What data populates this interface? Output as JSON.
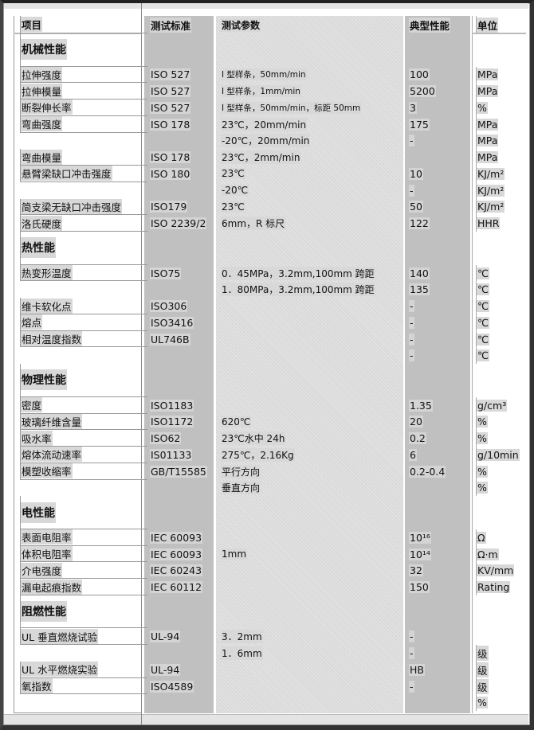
{
  "header": [
    "项目",
    "测试标准",
    "测试参数",
    "典型性能",
    "单位"
  ],
  "sections": [
    {
      "title": "机械性能",
      "rows": [
        [
          "拉伸强度",
          "ISO 527",
          "I 型样条，50mm/min",
          "100",
          "MPa"
        ],
        [
          "拉伸模量",
          "ISO 527",
          "I 型样条，1mm/min",
          "5200",
          "MPa"
        ],
        [
          "断裂伸长率",
          "ISO 527",
          "I 型样条，50mm/min，标距 50mm",
          "3",
          "%"
        ],
        [
          "弯曲强度",
          "ISO 178",
          "23℃，20mm/min",
          "175",
          "MPa"
        ],
        [
          "",
          "",
          "-20℃，20mm/min",
          "-",
          "MPa"
        ],
        [
          "弯曲模量",
          "ISO 178",
          "23℃，2mm/min",
          "",
          "MPa"
        ],
        [
          "悬臂梁缺口冲击强度",
          "ISO 180",
          "23℃",
          "10",
          "KJ/m²"
        ],
        [
          "",
          "",
          "-20℃",
          "-",
          "KJ/m²"
        ],
        [
          "简支梁无缺口冲击强度",
          "ISO179",
          "23℃",
          "50",
          "KJ/m²"
        ],
        [
          "洛氏硬度",
          "ISO 2239/2",
          "6mm，R 标尺",
          "122",
          "HHR"
        ]
      ]
    },
    {
      "title": "热性能",
      "rows": [
        [
          "热变形温度",
          "ISO75",
          "0．45MPa，3.2mm,100mm 跨距",
          "140",
          "℃"
        ],
        [
          "",
          "",
          "1．80MPa，3.2mm,100mm 跨距",
          "135",
          "℃"
        ],
        [
          "维卡软化点",
          "ISO306",
          "",
          "-",
          "℃"
        ],
        [
          "熔点",
          "ISO3416",
          "",
          "-",
          "℃"
        ],
        [
          "相对温度指数",
          "UL746B",
          "",
          "-",
          "℃"
        ],
        [
          "",
          "",
          "",
          "-",
          "℃"
        ]
      ]
    },
    {
      "title": "物理性能",
      "rows": [
        [
          "密度",
          "ISO1183",
          "",
          "1.35",
          "g/cm³"
        ],
        [
          "玻璃纤维含量",
          "ISO1172",
          "620℃",
          "20",
          "%"
        ],
        [
          "吸水率",
          "ISO62",
          "23℃水中 24h",
          "0.2",
          "%"
        ],
        [
          "熔体流动速率",
          "IS01133",
          "275℃，2.16Kg",
          "6",
          "g/10min"
        ],
        [
          "模塑收缩率",
          "GB/T15585",
          "平行方向",
          "0.2-0.4",
          "%"
        ],
        [
          "",
          "",
          "垂直方向",
          "",
          "%"
        ]
      ]
    },
    {
      "title": "电性能",
      "rows": [
        [
          "表面电阻率",
          "IEC 60093",
          "",
          "10¹⁶",
          "Ω"
        ],
        [
          "体积电阻率",
          "IEC 60093",
          "1mm",
          "10¹⁴",
          "Ω·m"
        ],
        [
          "介电强度",
          "IEC 60243",
          "",
          "32",
          "KV/mm"
        ],
        [
          "漏电起痕指数",
          "IEC 60112",
          "",
          "150",
          "Rating"
        ]
      ]
    },
    {
      "title": "阻燃性能",
      "rows": [
        [
          "UL 垂直燃烧试验",
          "UL-94",
          "3．2mm",
          "-",
          ""
        ],
        [
          "",
          "",
          "1．6mm",
          "-",
          "级"
        ],
        [
          "UL 水平燃烧实验",
          "UL-94",
          "",
          "HB",
          "级"
        ],
        [
          "氧指数",
          "ISO4589",
          "",
          "-",
          "级"
        ],
        [
          "",
          "",
          "",
          "",
          "%"
        ]
      ]
    }
  ]
}
